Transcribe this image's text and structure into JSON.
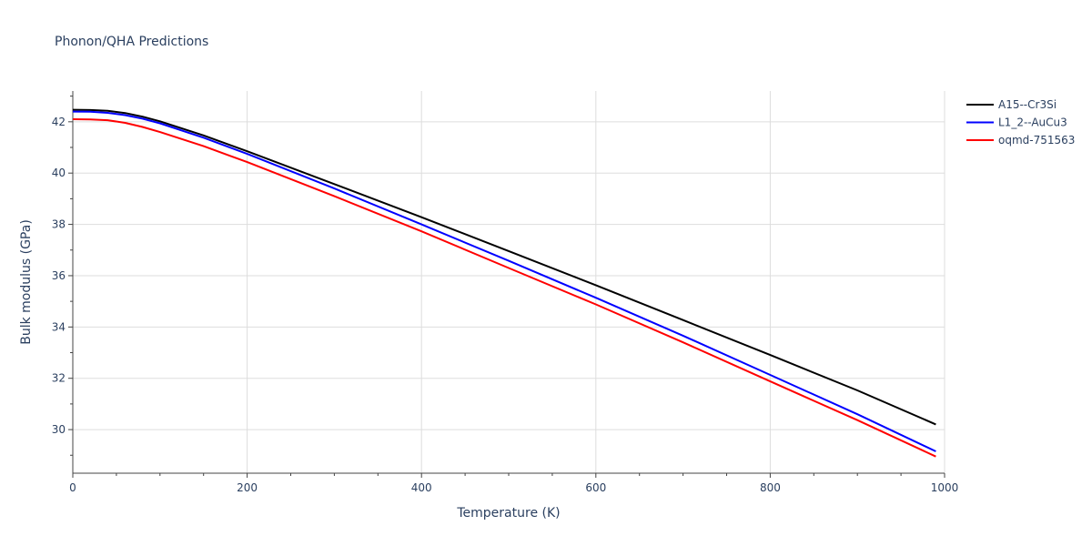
{
  "chart_data": {
    "type": "line",
    "title": "Phonon/QHA Predictions",
    "xlabel": "Temperature (K)",
    "ylabel": "Bulk modulus (GPa)",
    "xlim": [
      0,
      1000
    ],
    "ylim": [
      28.3,
      43.2
    ],
    "x_ticks": [
      0,
      200,
      400,
      600,
      800,
      1000
    ],
    "y_ticks": [
      30,
      32,
      34,
      36,
      38,
      40,
      42
    ],
    "grid": true,
    "legend_position": "top-right",
    "series": [
      {
        "name": "A15--Cr3Si",
        "color": "#000000",
        "x": [
          0,
          20,
          40,
          60,
          80,
          100,
          150,
          200,
          300,
          400,
          500,
          600,
          700,
          800,
          900,
          990
        ],
        "y": [
          42.47,
          42.46,
          42.43,
          42.34,
          42.2,
          42.02,
          41.47,
          40.85,
          39.57,
          38.28,
          36.96,
          35.63,
          34.27,
          32.91,
          31.53,
          30.2
        ]
      },
      {
        "name": "L1_2--AuCu3",
        "color": "#0000ff",
        "x": [
          0,
          20,
          40,
          60,
          80,
          100,
          150,
          200,
          300,
          400,
          500,
          600,
          700,
          800,
          900,
          990
        ],
        "y": [
          42.4,
          42.39,
          42.35,
          42.26,
          42.12,
          41.94,
          41.38,
          40.75,
          39.4,
          38.0,
          36.58,
          35.14,
          33.66,
          32.13,
          30.6,
          29.15
        ]
      },
      {
        "name": "oqmd-751563",
        "color": "#ff0000",
        "x": [
          0,
          20,
          40,
          60,
          80,
          100,
          150,
          200,
          300,
          400,
          500,
          600,
          700,
          800,
          900,
          990
        ],
        "y": [
          42.1,
          42.09,
          42.06,
          41.96,
          41.8,
          41.6,
          41.05,
          40.43,
          39.1,
          37.73,
          36.3,
          34.88,
          33.4,
          31.88,
          30.37,
          28.95
        ]
      }
    ]
  }
}
